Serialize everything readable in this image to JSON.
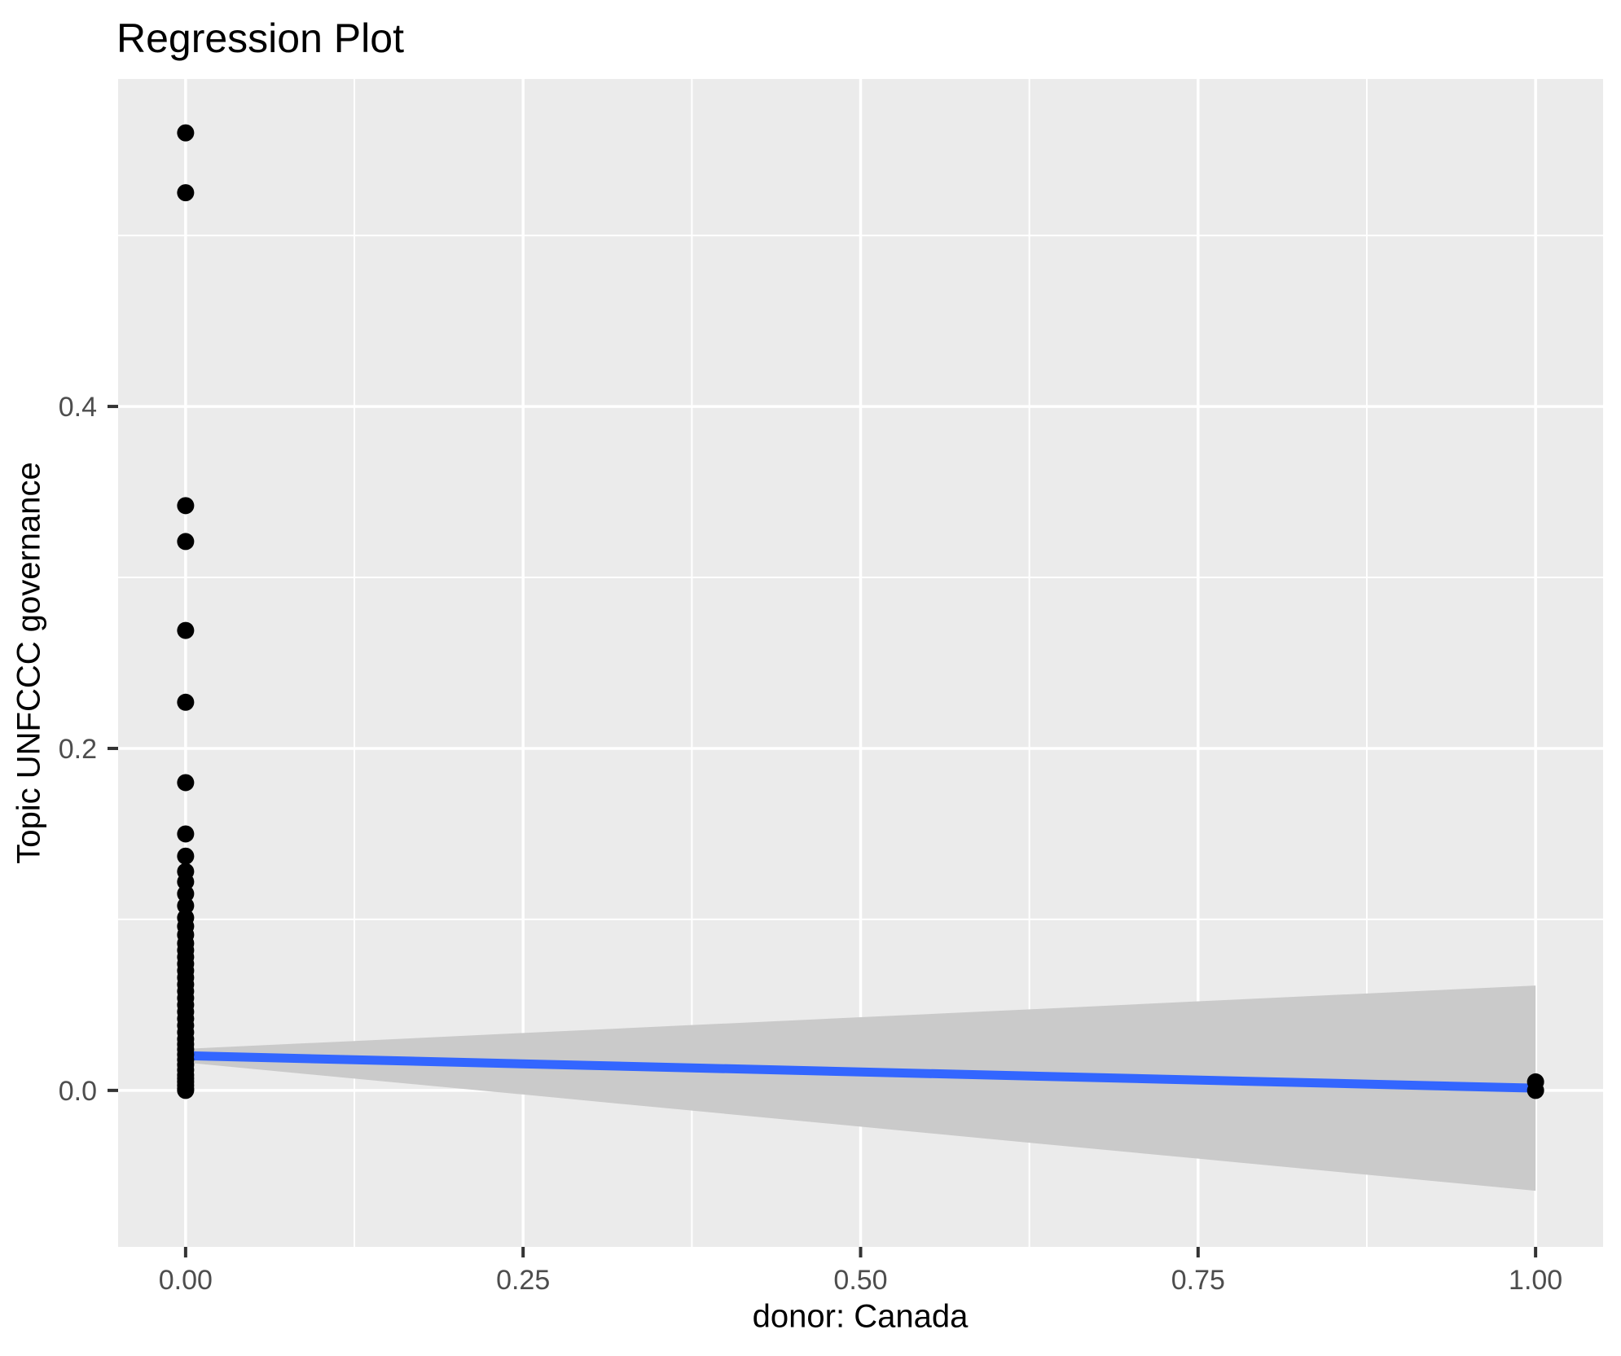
{
  "title": "Regression Plot",
  "chart_data": {
    "type": "scatter",
    "title": "Regression Plot",
    "xlabel": "donor: Canada",
    "ylabel": "Topic UNFCCC governance",
    "xlim": [
      -0.05,
      1.05
    ],
    "ylim": [
      -0.0915,
      0.5915
    ],
    "grid": {
      "major": true,
      "minor": true
    },
    "legend_position": "none",
    "x_ticks": [
      {
        "value": 0.0,
        "label": "0.00"
      },
      {
        "value": 0.25,
        "label": "0.25"
      },
      {
        "value": 0.5,
        "label": "0.50"
      },
      {
        "value": 0.75,
        "label": "0.75"
      },
      {
        "value": 1.0,
        "label": "1.00"
      }
    ],
    "y_ticks": [
      {
        "value": 0.0,
        "label": "0.0"
      },
      {
        "value": 0.2,
        "label": "0.2"
      },
      {
        "value": 0.4,
        "label": "0.4"
      }
    ],
    "x_minor_ticks": [
      0.125,
      0.375,
      0.625,
      0.875
    ],
    "y_minor_ticks": [
      0.1,
      0.3,
      0.5
    ],
    "series": [
      {
        "name": "confidence-band",
        "type": "ribbon",
        "x": [
          0.0,
          0.125,
          0.25,
          0.375,
          0.5,
          0.625,
          0.75,
          0.875,
          1.0
        ],
        "lower": [
          0.0163,
          0.0069,
          -0.0024,
          -0.0118,
          -0.0212,
          -0.0306,
          -0.0399,
          -0.0493,
          -0.0587
        ],
        "upper": [
          0.0243,
          0.0289,
          0.0336,
          0.0382,
          0.0428,
          0.0474,
          0.0521,
          0.0567,
          0.0613
        ]
      },
      {
        "name": "regression-line",
        "type": "line",
        "x": [
          0.0,
          1.0
        ],
        "y": [
          0.0203,
          0.0013
        ]
      },
      {
        "name": "observations",
        "type": "points",
        "points": [
          [
            0,
            0.56
          ],
          [
            0,
            0.525
          ],
          [
            0,
            0.342
          ],
          [
            0,
            0.321
          ],
          [
            0,
            0.269
          ],
          [
            0,
            0.227
          ],
          [
            0,
            0.18
          ],
          [
            0,
            0.15
          ],
          [
            0,
            0.137
          ],
          [
            0,
            0.128
          ],
          [
            0,
            0.122
          ],
          [
            0,
            0.115
          ],
          [
            0,
            0.108
          ],
          [
            0,
            0.101
          ],
          [
            0,
            0.096
          ],
          [
            0,
            0.091
          ],
          [
            0,
            0.086
          ],
          [
            0,
            0.082
          ],
          [
            0,
            0.078
          ],
          [
            0,
            0.074
          ],
          [
            0,
            0.07
          ],
          [
            0,
            0.066
          ],
          [
            0,
            0.062
          ],
          [
            0,
            0.058
          ],
          [
            0,
            0.054
          ],
          [
            0,
            0.05
          ],
          [
            0,
            0.046
          ],
          [
            0,
            0.042
          ],
          [
            0,
            0.038
          ],
          [
            0,
            0.034
          ],
          [
            0,
            0.03
          ],
          [
            0,
            0.027
          ],
          [
            0,
            0.024
          ],
          [
            0,
            0.021
          ],
          [
            0,
            0.018
          ],
          [
            0,
            0.015
          ],
          [
            0,
            0.012
          ],
          [
            0,
            0.009
          ],
          [
            0,
            0.007
          ],
          [
            0,
            0.005
          ],
          [
            0,
            0.003
          ],
          [
            0,
            0.001
          ],
          [
            0,
            0.0
          ],
          [
            1,
            0.005
          ],
          [
            1,
            0.0
          ]
        ]
      }
    ],
    "colors": {
      "panel_background": "#EBEBEB",
      "grid_line": "#FFFFFF",
      "point": "#000000",
      "regression_line": "#3366FF",
      "confidence_band": "#CACACA",
      "tick_mark": "#333333",
      "tick_label": "#4D4D4D",
      "axis_title": "#000000",
      "plot_title": "#000000"
    }
  }
}
